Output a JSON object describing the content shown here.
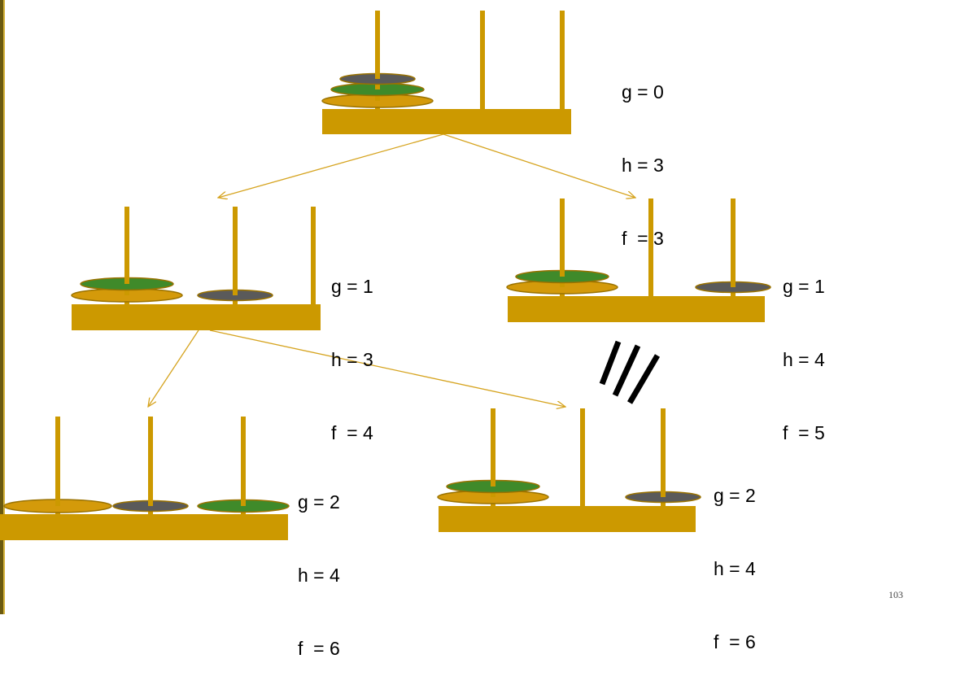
{
  "colors": {
    "wood": "#cc9900",
    "wood_edge": "#9a7200",
    "disk_small": "#5a5a5a",
    "disk_medium": "#3f8a2a",
    "disk_large": "#d49a0a",
    "arrow": "#d6a420",
    "strike": "#000000"
  },
  "states": [
    {
      "id": "root",
      "labels": {
        "g": "g = 0",
        "h": "h = 3",
        "f": "f  = 3"
      },
      "pegs": [
        [
          "large",
          "medium",
          "small"
        ],
        [],
        []
      ]
    },
    {
      "id": "level1-left",
      "labels": {
        "g": "g = 1",
        "h": "h = 3",
        "f": "f  = 4"
      },
      "pegs": [
        [
          "large",
          "medium"
        ],
        [
          "small"
        ],
        []
      ]
    },
    {
      "id": "level1-right",
      "labels": {
        "g": "g = 1",
        "h": "h = 4",
        "f": "f  = 5"
      },
      "pegs": [
        [
          "large",
          "medium"
        ],
        [],
        [
          "small"
        ]
      ]
    },
    {
      "id": "level2-left",
      "labels": {
        "g": "g = 2",
        "h": "h = 4",
        "f": "f  = 6"
      },
      "pegs": [
        [
          "large"
        ],
        [
          "small"
        ],
        [
          "medium"
        ]
      ]
    },
    {
      "id": "level2-right",
      "labels": {
        "g": "g = 2",
        "h": "h = 4",
        "f": "f  = 6"
      },
      "pegs": [
        [
          "large",
          "medium"
        ],
        [],
        [
          "small"
        ]
      ]
    }
  ],
  "edges": [
    {
      "from": "root",
      "to": "level1-left"
    },
    {
      "from": "root",
      "to": "level1-right"
    },
    {
      "from": "level1-left",
      "to": "level2-left"
    },
    {
      "from": "level1-left",
      "to": "level2-right"
    }
  ],
  "pruned_marker": "///",
  "page_number": "103"
}
